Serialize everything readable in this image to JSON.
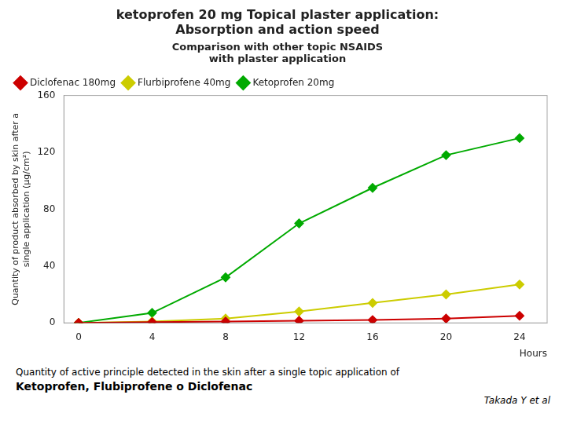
{
  "chart_data": {
    "type": "line",
    "title": [
      "ketoprofen 20 mg Topical plaster application:",
      "Absorption and action speed"
    ],
    "subtitle": [
      "Comparison with other topic NSAIDS",
      "with plaster application"
    ],
    "xlabel": "Hours",
    "ylabel": [
      "Quantity of product absorbed by skin after a",
      "single application (µg/cm²)"
    ],
    "x": [
      0,
      4,
      8,
      12,
      16,
      20,
      24
    ],
    "series": [
      {
        "name": "Diclofenac 180mg",
        "color": "#cc0000",
        "marker": "diamond",
        "values": [
          0,
          0.5,
          1.0,
          1.5,
          2.0,
          3.0,
          5.0
        ]
      },
      {
        "name": "Flurbiprofene 40mg",
        "color": "#cccc00",
        "marker": "diamond",
        "values": [
          0,
          1.0,
          3.0,
          8.0,
          14.0,
          20.0,
          27.0
        ]
      },
      {
        "name": "Ketoprofen 20mg",
        "color": "#00aa00",
        "marker": "diamond",
        "values": [
          0,
          7.0,
          32.0,
          70.0,
          95.0,
          118.0,
          130.0
        ]
      }
    ],
    "xlim": [
      -0.8,
      25.5
    ],
    "xticks": [
      0,
      4,
      8,
      12,
      16,
      20,
      24
    ],
    "ylim": [
      0,
      160
    ],
    "yticks": [
      0,
      40,
      80,
      120,
      160
    ],
    "grid": false,
    "legend": "upper left",
    "annotations": [
      "Quantity of active principle detected in the skin after a single topic application of",
      "Ketoprofen, Flubiprofene o Diclofenac",
      "Takada Y et al"
    ]
  }
}
